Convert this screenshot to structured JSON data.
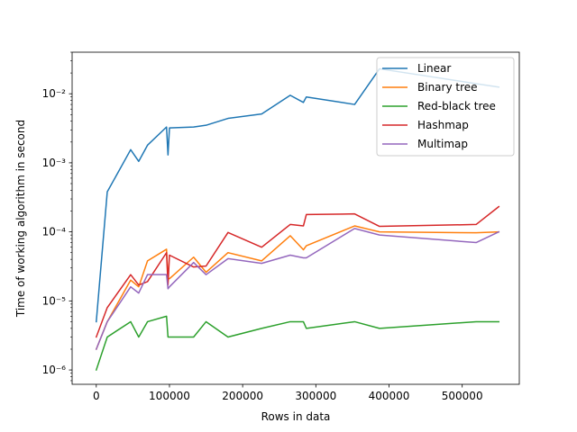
{
  "chart_data": {
    "type": "line",
    "title": "",
    "xlabel": "Rows in data",
    "ylabel": "Time of working algorithm in second",
    "yscale": "log",
    "xlim": [
      -33000,
      578000
    ],
    "ylim": [
      6.2e-07,
      0.04
    ],
    "x_ticks": [
      0,
      100000,
      200000,
      300000,
      400000,
      500000
    ],
    "x_tick_labels": [
      "0",
      "100000",
      "200000",
      "300000",
      "400000",
      "500000"
    ],
    "y_ticks": [
      1e-06,
      1e-05,
      0.0001,
      0.001,
      0.01
    ],
    "y_tick_labels": [
      "10⁻⁶",
      "10⁻⁵",
      "10⁻⁴",
      "10⁻³",
      "10⁻²"
    ],
    "grid": false,
    "legend_position": "top-right",
    "series": [
      {
        "name": "Linear",
        "color": "#1f77b4",
        "points": [
          [
            0,
            5e-06
          ],
          [
            15000,
            0.00038
          ],
          [
            47000,
            0.00155
          ],
          [
            58000,
            0.00105
          ],
          [
            70000,
            0.0018
          ],
          [
            96000,
            0.0033
          ],
          [
            98000,
            0.0013
          ],
          [
            100000,
            0.0032
          ],
          [
            133000,
            0.0033
          ],
          [
            150000,
            0.0035
          ],
          [
            180000,
            0.0044
          ],
          [
            226000,
            0.0051
          ],
          [
            265000,
            0.0095
          ],
          [
            283000,
            0.0075
          ],
          [
            287000,
            0.009
          ],
          [
            353000,
            0.007
          ],
          [
            387000,
            0.023
          ],
          [
            519000,
            0.014
          ],
          [
            550000,
            0.0125
          ]
        ]
      },
      {
        "name": "Binary tree",
        "color": "#ff7f0e",
        "points": [
          [
            0,
            2e-06
          ],
          [
            15000,
            5e-06
          ],
          [
            47000,
            2e-05
          ],
          [
            58000,
            1.6e-05
          ],
          [
            70000,
            3.8e-05
          ],
          [
            96000,
            5.6e-05
          ],
          [
            98000,
            2.1e-05
          ],
          [
            100000,
            2.1e-05
          ],
          [
            133000,
            4.3e-05
          ],
          [
            150000,
            2.6e-05
          ],
          [
            180000,
            5e-05
          ],
          [
            226000,
            3.8e-05
          ],
          [
            265000,
            8.8e-05
          ],
          [
            283000,
            5.5e-05
          ],
          [
            287000,
            6.3e-05
          ],
          [
            353000,
            0.000122
          ],
          [
            387000,
            0.0001
          ],
          [
            519000,
            9.7e-05
          ],
          [
            550000,
            0.0001
          ]
        ]
      },
      {
        "name": "Red-black tree",
        "color": "#2ca02c",
        "points": [
          [
            0,
            1e-06
          ],
          [
            15000,
            3e-06
          ],
          [
            47000,
            5e-06
          ],
          [
            58000,
            3e-06
          ],
          [
            70000,
            5e-06
          ],
          [
            96000,
            6e-06
          ],
          [
            98000,
            3e-06
          ],
          [
            100000,
            3e-06
          ],
          [
            133000,
            3e-06
          ],
          [
            150000,
            5e-06
          ],
          [
            180000,
            3e-06
          ],
          [
            226000,
            4e-06
          ],
          [
            265000,
            5e-06
          ],
          [
            283000,
            5e-06
          ],
          [
            287000,
            4e-06
          ],
          [
            353000,
            5e-06
          ],
          [
            387000,
            4e-06
          ],
          [
            519000,
            5e-06
          ],
          [
            550000,
            5e-06
          ]
        ]
      },
      {
        "name": "Hashmap",
        "color": "#d62728",
        "points": [
          [
            0,
            3e-06
          ],
          [
            15000,
            8e-06
          ],
          [
            47000,
            2.4e-05
          ],
          [
            58000,
            1.7e-05
          ],
          [
            70000,
            1.9e-05
          ],
          [
            96000,
            5e-05
          ],
          [
            98000,
            1.7e-05
          ],
          [
            100000,
            4.6e-05
          ],
          [
            133000,
            3.1e-05
          ],
          [
            150000,
            3.2e-05
          ],
          [
            180000,
            9.8e-05
          ],
          [
            226000,
            6e-05
          ],
          [
            265000,
            0.000128
          ],
          [
            283000,
            0.000122
          ],
          [
            287000,
            0.000178
          ],
          [
            353000,
            0.000182
          ],
          [
            387000,
            0.00012
          ],
          [
            519000,
            0.000128
          ],
          [
            550000,
            0.000232
          ]
        ]
      },
      {
        "name": "Multimap",
        "color": "#9467bd",
        "points": [
          [
            0,
            2e-06
          ],
          [
            15000,
            5e-06
          ],
          [
            47000,
            1.6e-05
          ],
          [
            58000,
            1.3e-05
          ],
          [
            70000,
            2.4e-05
          ],
          [
            96000,
            2.4e-05
          ],
          [
            98000,
            1.5e-05
          ],
          [
            100000,
            1.6e-05
          ],
          [
            133000,
            3.6e-05
          ],
          [
            150000,
            2.4e-05
          ],
          [
            180000,
            4.1e-05
          ],
          [
            226000,
            3.5e-05
          ],
          [
            265000,
            4.6e-05
          ],
          [
            283000,
            4.2e-05
          ],
          [
            287000,
            4.2e-05
          ],
          [
            353000,
            0.000112
          ],
          [
            387000,
            9e-05
          ],
          [
            519000,
            7e-05
          ],
          [
            550000,
            0.0001
          ]
        ]
      }
    ]
  }
}
